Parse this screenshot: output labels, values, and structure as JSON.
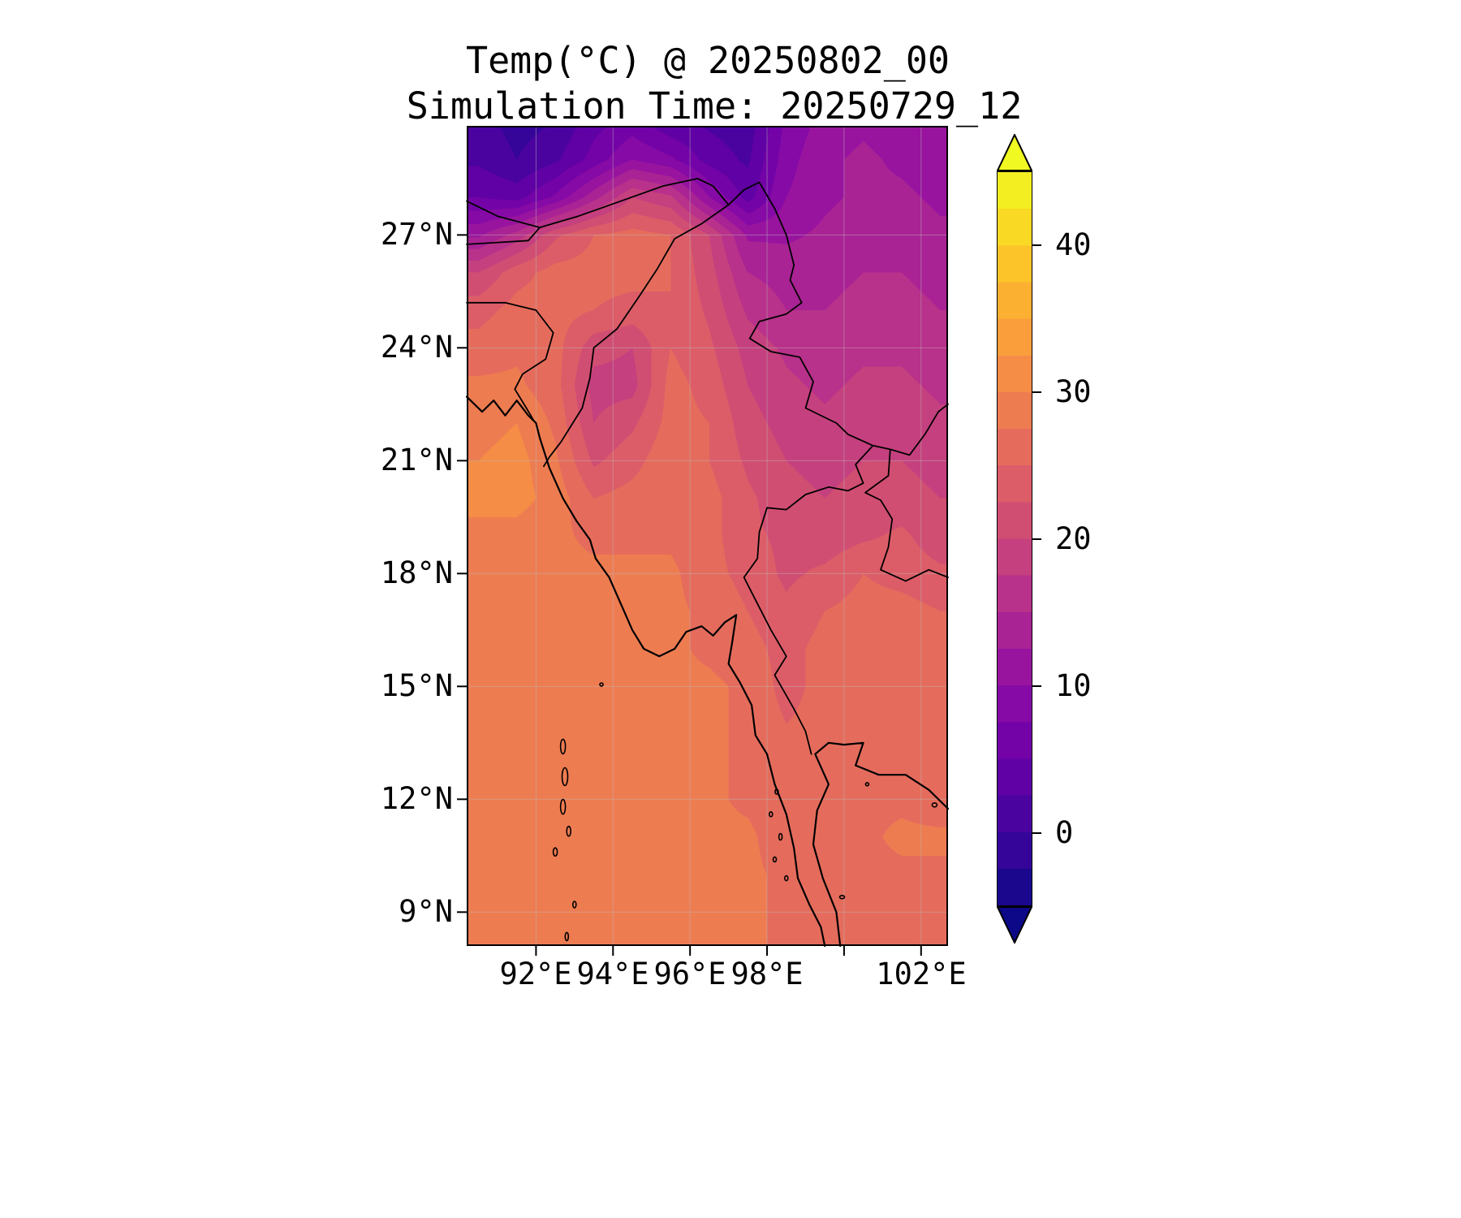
{
  "title": "Temp(°C) @ 20250802_00",
  "subtitle": "Simulation Time: 20250729_12",
  "axes": {
    "x_tick_labels": [
      "92°E",
      "94°E",
      "96°E",
      "98°E",
      "102°E"
    ],
    "y_tick_labels": [
      "27°N",
      "24°N",
      "21°N",
      "18°N",
      "15°N",
      "12°N",
      "9°N"
    ]
  },
  "colorbar": {
    "tick_labels": [
      "40",
      "30",
      "20",
      "10",
      "0"
    ],
    "tick_values": [
      40,
      30,
      20,
      10,
      0
    ],
    "vmin": -5,
    "vmax": 45,
    "band_step": 2.5,
    "extend": "both",
    "colormap": "plasma",
    "colormap_stops": [
      "#0d0887",
      "#41049d",
      "#6a00a8",
      "#8f0da4",
      "#b12a90",
      "#cc4778",
      "#e16462",
      "#f2844b",
      "#fca636",
      "#fcce25",
      "#f0f921"
    ]
  },
  "chart_data": {
    "type": "heatmap",
    "title": "Temp(°C) @ 20250802_00",
    "subtitle": "Simulation Time: 20250729_12",
    "variable": "Temp",
    "units": "°C",
    "valid_time": "20250802_00",
    "simulation_time": "20250729_12",
    "colormap": "plasma",
    "color_levels": {
      "min": -5,
      "max": 45,
      "step": 2.5
    },
    "x": {
      "name": "longitude",
      "min": 90.2,
      "max": 102.7,
      "ticks": [
        92,
        94,
        96,
        98,
        102
      ],
      "gridlines": [
        92,
        94,
        96,
        98,
        100,
        102
      ]
    },
    "y": {
      "name": "latitude",
      "min": 8.1,
      "max": 29.9,
      "ticks": [
        27,
        24,
        21,
        18,
        15,
        12,
        9
      ],
      "gridlines": [
        27,
        24,
        21,
        18,
        15,
        12,
        9
      ]
    },
    "grid_lons": [
      90.5,
      91.5,
      92.5,
      93.5,
      94.5,
      95.5,
      96.5,
      97.5,
      98.5,
      99.5,
      100.5,
      101.5,
      102.5
    ],
    "grid_lats": [
      30,
      29,
      28,
      27,
      26,
      25,
      24,
      23,
      22,
      21,
      20,
      19,
      18,
      17,
      16,
      15,
      14,
      13,
      12,
      11,
      10,
      9,
      8
    ],
    "values_degC": [
      [
        1,
        -1,
        0,
        4,
        6,
        3,
        2,
        1,
        8,
        11,
        12,
        11,
        10
      ],
      [
        2,
        0,
        2,
        6,
        10,
        8,
        4,
        2,
        9,
        12,
        13,
        12,
        11
      ],
      [
        5,
        4,
        8,
        14,
        20,
        18,
        10,
        4,
        10,
        12,
        13,
        13,
        12
      ],
      [
        12,
        16,
        22,
        25,
        26,
        25,
        20,
        12,
        12,
        13,
        14,
        14,
        13
      ],
      [
        20,
        24,
        26,
        26,
        26,
        25,
        21,
        15,
        14,
        14,
        15,
        15,
        14
      ],
      [
        24,
        26,
        26,
        25,
        24,
        25,
        22,
        17,
        15,
        15,
        16,
        16,
        15
      ],
      [
        26,
        27,
        26,
        21,
        20,
        25,
        23,
        19,
        17,
        16,
        17,
        17,
        16
      ],
      [
        28,
        28,
        26,
        19,
        19,
        26,
        24,
        20,
        18,
        17,
        18,
        18,
        17
      ],
      [
        29,
        30,
        27,
        20,
        22,
        26,
        25,
        21,
        19,
        18,
        19,
        19,
        18
      ],
      [
        30,
        31,
        28,
        22,
        24,
        27,
        25,
        22,
        20,
        19,
        20,
        20,
        19
      ],
      [
        31,
        31,
        29,
        25,
        26,
        27,
        26,
        23,
        21,
        20,
        21,
        21,
        20
      ],
      [
        29,
        29,
        28,
        27,
        27,
        27,
        26,
        23,
        22,
        21,
        22,
        23,
        21
      ],
      [
        28,
        28,
        28,
        28,
        28,
        28,
        26,
        24,
        22,
        23,
        25,
        24,
        23
      ],
      [
        28,
        28,
        28,
        28,
        28,
        28,
        27,
        25,
        23,
        25,
        26,
        26,
        25
      ],
      [
        28,
        28,
        28,
        28,
        28,
        28,
        27,
        26,
        24,
        26,
        27,
        27,
        26
      ],
      [
        28,
        28,
        28,
        28,
        28,
        28,
        28,
        27,
        24,
        26,
        27,
        27,
        27
      ],
      [
        28,
        28,
        28,
        28,
        28,
        28,
        28,
        27,
        25,
        26,
        27,
        27,
        27
      ],
      [
        28,
        28,
        28,
        28,
        28,
        28,
        28,
        27,
        25,
        26,
        27,
        26,
        25
      ],
      [
        28,
        28,
        28,
        28,
        28,
        28,
        28,
        27,
        26,
        25,
        27,
        27,
        26
      ],
      [
        28,
        28,
        28,
        28,
        28,
        28,
        28,
        28,
        26,
        25,
        27,
        28,
        28
      ],
      [
        28,
        28,
        28,
        28,
        28,
        28,
        28,
        28,
        27,
        26,
        27,
        27,
        27
      ],
      [
        28,
        28,
        28,
        28,
        28,
        28,
        28,
        28,
        27,
        26,
        27,
        27,
        27
      ],
      [
        28,
        28,
        28,
        28,
        28,
        28,
        28,
        28,
        27,
        27,
        27,
        27,
        27
      ]
    ]
  }
}
